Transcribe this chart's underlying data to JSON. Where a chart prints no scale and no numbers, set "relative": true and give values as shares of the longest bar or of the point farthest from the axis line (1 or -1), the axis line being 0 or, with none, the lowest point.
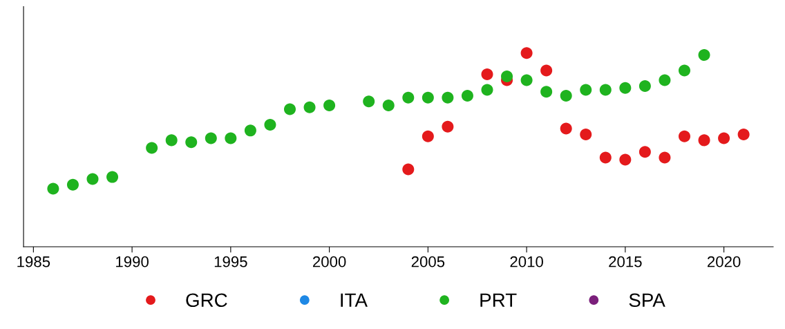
{
  "chart_data": {
    "type": "scatter",
    "relative": true,
    "marker": "circle",
    "legend": "bottom",
    "xlim": [
      1984.5,
      2022.5
    ],
    "xticks": [
      1985,
      1990,
      1995,
      2000,
      2005,
      2010,
      2015,
      2020
    ],
    "series": [
      {
        "name": "GRC",
        "color": "#e41a1c",
        "x": [
          2004,
          2005,
          2006,
          2008,
          2009,
          2010,
          2011,
          2012,
          2013,
          2014,
          2015,
          2016,
          2017,
          2018,
          2019,
          2020,
          2021
        ],
        "values": [
          0.4,
          0.57,
          0.62,
          0.89,
          0.86,
          1,
          0.91,
          0.61,
          0.58,
          0.46,
          0.45,
          0.49,
          0.46,
          0.57,
          0.55,
          0.56,
          0.58
        ]
      },
      {
        "name": "ITA",
        "color": "#1e88e5"
      },
      {
        "name": "PRT",
        "color": "#1fb31f",
        "x": [
          1986,
          1987,
          1988,
          1989,
          1991,
          1992,
          1993,
          1994,
          1995,
          1996,
          1997,
          1998,
          1999,
          2000,
          2002,
          2003,
          2004,
          2005,
          2006,
          2007,
          2008,
          2009,
          2010,
          2011,
          2012,
          2013,
          2014,
          2015,
          2016,
          2017,
          2018,
          2019
        ],
        "values": [
          0.3,
          0.32,
          0.35,
          0.36,
          0.51,
          0.55,
          0.54,
          0.56,
          0.56,
          0.6,
          0.63,
          0.71,
          0.72,
          0.73,
          0.75,
          0.73,
          0.77,
          0.77,
          0.77,
          0.78,
          0.81,
          0.88,
          0.86,
          0.8,
          0.78,
          0.81,
          0.81,
          0.82,
          0.83,
          0.86,
          0.91,
          0.99
        ]
      },
      {
        "name": "SPA",
        "color": "#7b1f7b"
      }
    ]
  }
}
